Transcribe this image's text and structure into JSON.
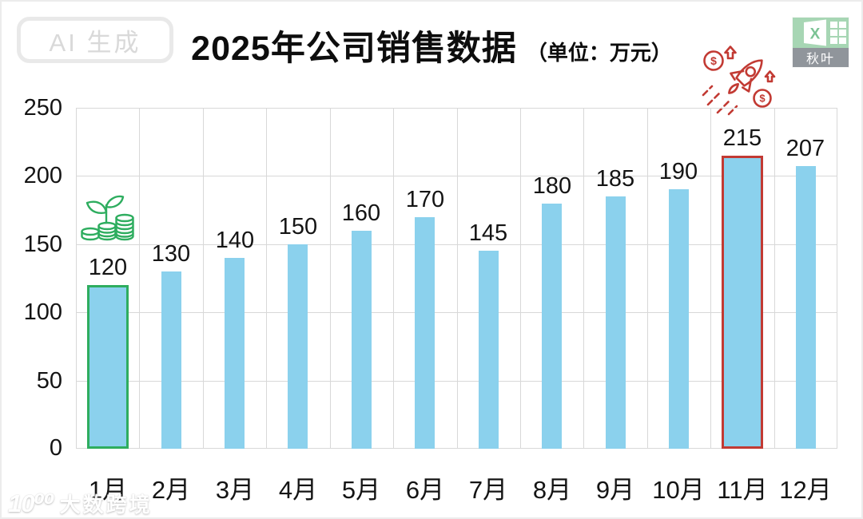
{
  "header": {
    "badge": "AI 生成",
    "title": "2025年公司销售数据",
    "unit": "（单位：万元）",
    "logo_excel_letter": "X",
    "logo_brand": "秋叶"
  },
  "watermark": {
    "logo": "10⁰⁰",
    "text": "大数跨境"
  },
  "icons": {
    "dollar": "$",
    "dollar2": "$"
  },
  "colors": {
    "bar_blue": "#8bd1ed",
    "highlight_green": "#2ead5f",
    "highlight_red": "#c23a33",
    "grid_gray": "#d8d8d8",
    "text_black": "#141414"
  },
  "chart_data": {
    "type": "bar",
    "title": "2025年公司销售数据",
    "unit_label": "万元",
    "categories": [
      "1月",
      "2月",
      "3月",
      "4月",
      "5月",
      "6月",
      "7月",
      "8月",
      "9月",
      "10月",
      "11月",
      "12月"
    ],
    "values": [
      120,
      130,
      140,
      150,
      160,
      170,
      145,
      180,
      185,
      190,
      215,
      207
    ],
    "ylim": [
      0,
      250
    ],
    "y_ticks": [
      0,
      50,
      100,
      150,
      200,
      250
    ],
    "grid": true,
    "legend_position": "none",
    "bar_color": "#8bd1ed",
    "highlights": [
      {
        "index": 0,
        "border_color": "#2ead5f",
        "icon": "coins-plant-icon"
      },
      {
        "index": 10,
        "border_color": "#c23a33",
        "icon": "rocket-icon"
      }
    ]
  }
}
